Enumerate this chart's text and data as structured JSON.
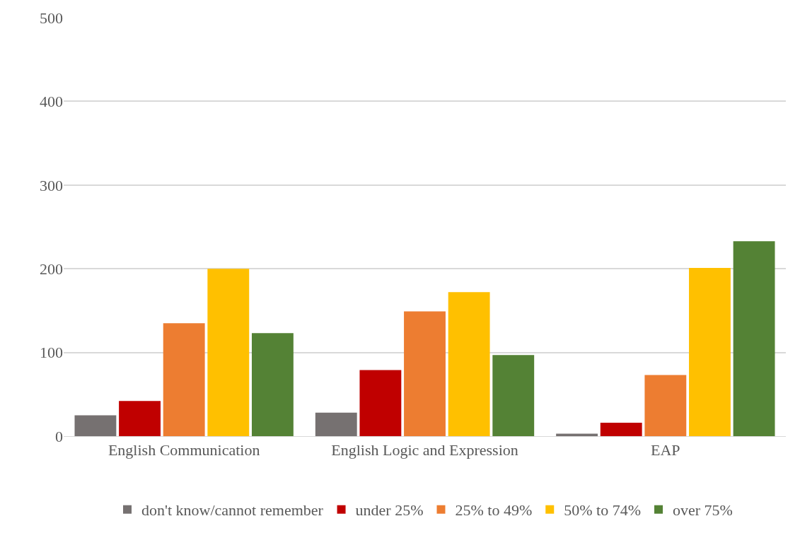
{
  "chart_data": {
    "type": "bar",
    "categories": [
      "English Communication",
      "English Logic and Expression",
      "EAP"
    ],
    "series": [
      {
        "name": "don't know/cannot remember",
        "color": "#767171",
        "values": [
          25,
          28,
          3
        ]
      },
      {
        "name": "under 25%",
        "color": "#c00000",
        "values": [
          42,
          79,
          16
        ]
      },
      {
        "name": "25% to 49%",
        "color": "#ed7d31",
        "values": [
          135,
          149,
          73
        ]
      },
      {
        "name": "50% to 74%",
        "color": "#ffc000",
        "values": [
          200,
          172,
          201
        ]
      },
      {
        "name": "over 75%",
        "color": "#548235",
        "values": [
          123,
          97,
          233
        ]
      }
    ],
    "ylim": [
      0,
      500
    ],
    "yticks": [
      0,
      100,
      200,
      300,
      400,
      500
    ],
    "grid": "y",
    "legend": "bottom"
  }
}
